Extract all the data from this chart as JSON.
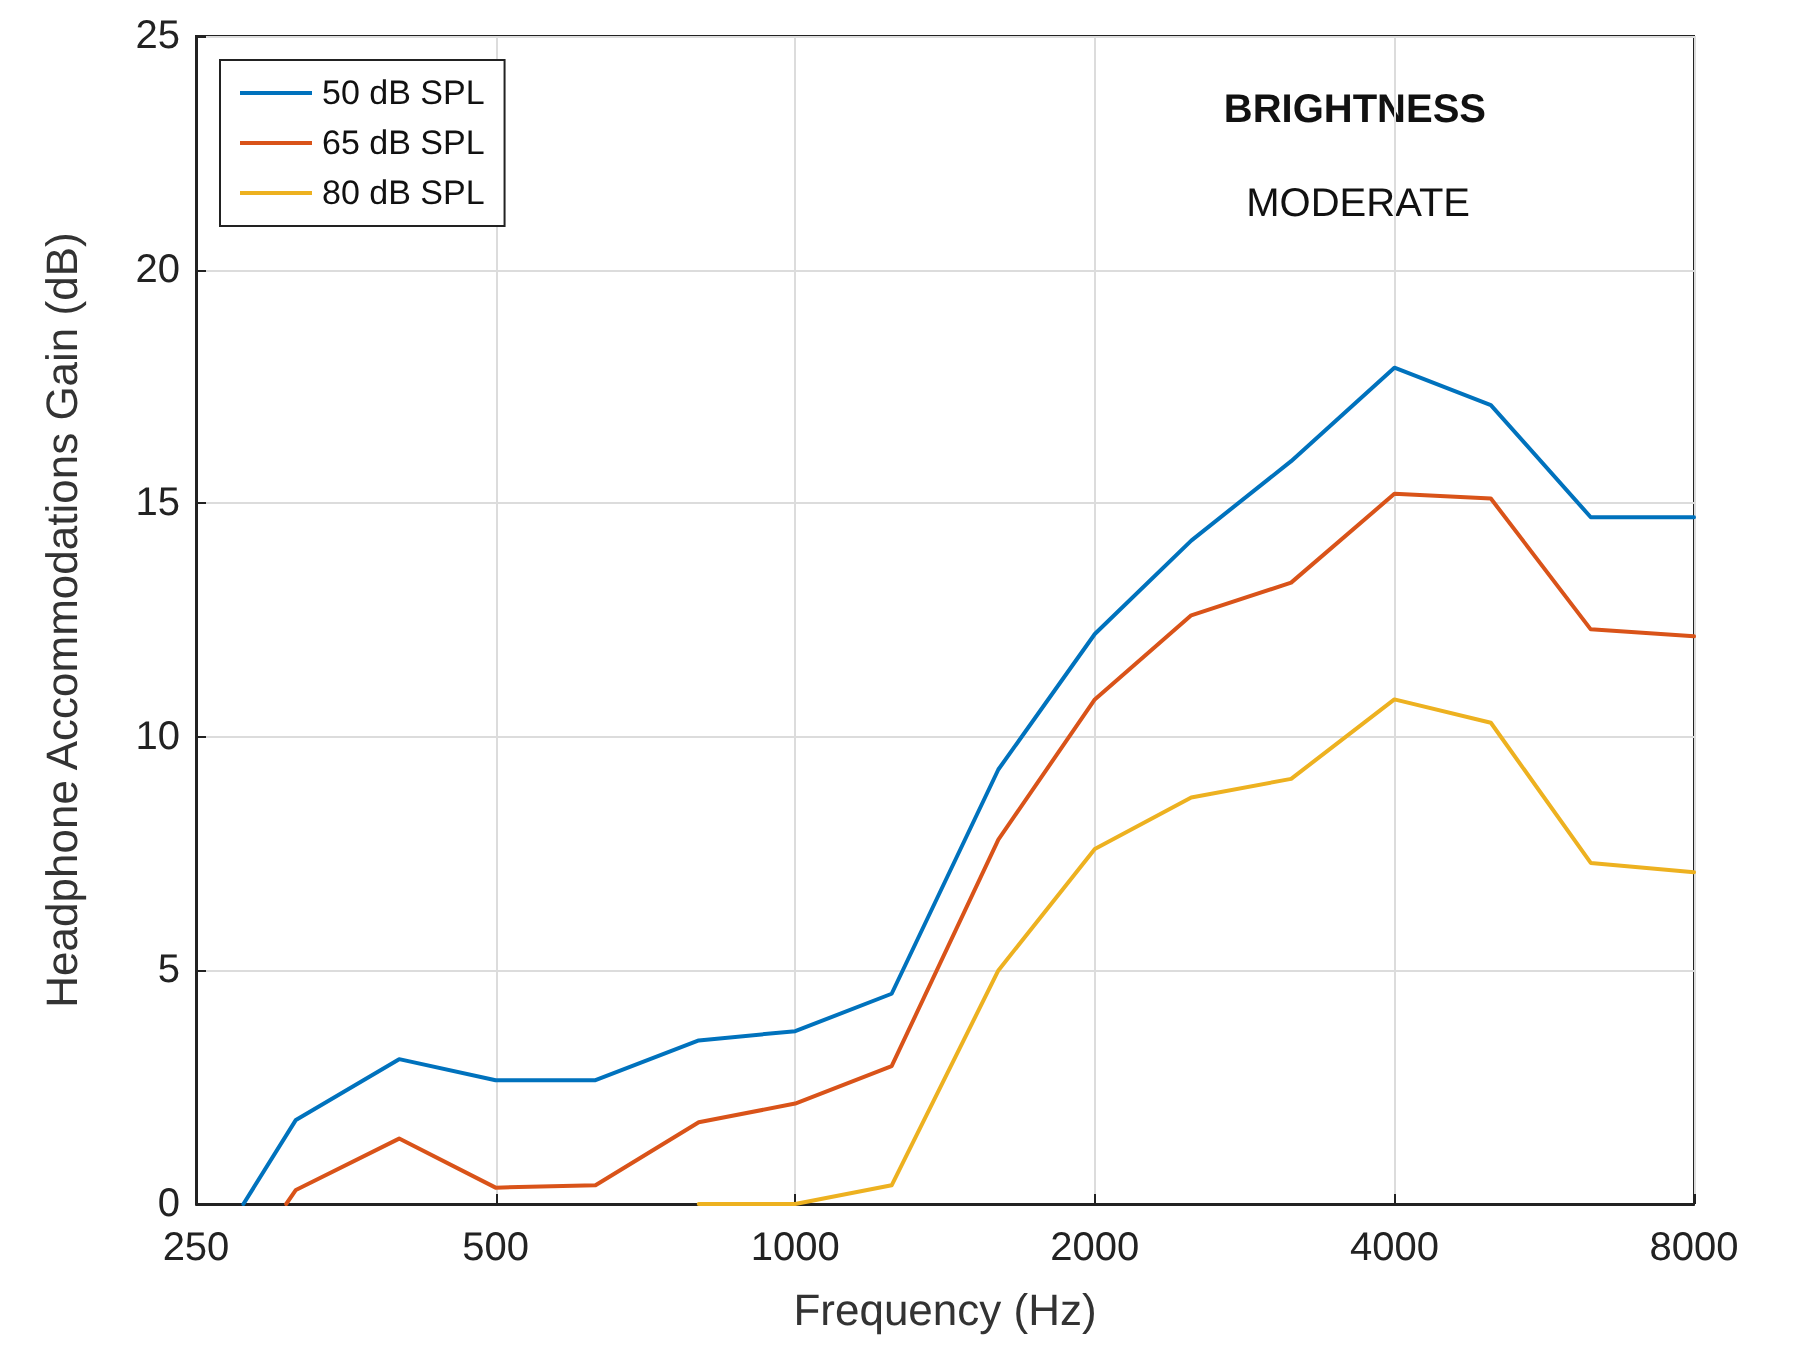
{
  "chart_data": {
    "type": "line",
    "xlabel": "Frequency (Hz)",
    "ylabel": "Headphone Accommodations Gain (dB)",
    "annotations": [
      "BRIGHTNESS",
      "MODERATE"
    ],
    "log": "x",
    "xlim": [
      250,
      8000
    ],
    "xticks": [
      250,
      500,
      1000,
      2000,
      4000,
      8000
    ],
    "ylim": [
      0,
      25
    ],
    "yticks": [
      0,
      5,
      10,
      15,
      20,
      25
    ],
    "grid": true,
    "legend": "top left",
    "marker": "none",
    "line_style": "solid",
    "series": [
      {
        "name": "50 dB SPL",
        "color": "#0072bd",
        "x": [
          279,
          315,
          400,
          500,
          630,
          800,
          1000,
          1250,
          1600,
          2000,
          2500,
          3150,
          4000,
          5000,
          6300,
          8000
        ],
        "values": [
          0,
          1.8,
          3.1,
          2.65,
          2.65,
          3.5,
          3.7,
          4.5,
          9.3,
          12.2,
          14.2,
          15.9,
          17.9,
          17.1,
          14.7,
          14.7
        ]
      },
      {
        "name": "65 dB SPL",
        "color": "#d95319",
        "x": [
          308,
          315,
          400,
          500,
          630,
          800,
          1000,
          1250,
          1600,
          2000,
          2500,
          3150,
          4000,
          5000,
          6300,
          8000
        ],
        "values": [
          0,
          0.3,
          1.4,
          0.35,
          0.4,
          1.75,
          2.15,
          2.95,
          7.8,
          10.8,
          12.6,
          13.3,
          15.2,
          15.1,
          12.3,
          12.15
        ]
      },
      {
        "name": "80 dB SPL",
        "color": "#edb120",
        "x": [
          800,
          1000,
          1250,
          1600,
          2000,
          2500,
          3150,
          4000,
          5000,
          6300,
          8000
        ],
        "values": [
          0,
          0,
          0.4,
          5.0,
          7.6,
          8.7,
          9.1,
          10.8,
          10.3,
          7.3,
          7.1
        ]
      }
    ]
  }
}
